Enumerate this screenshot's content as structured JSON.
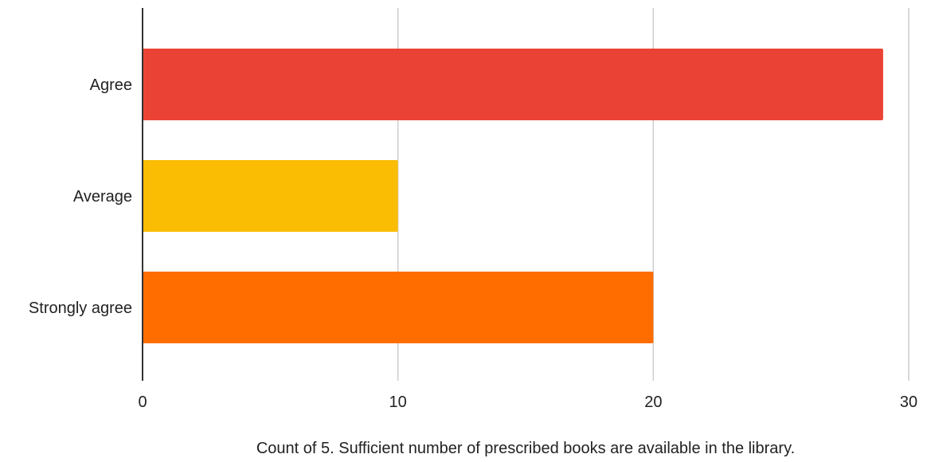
{
  "chart_data": {
    "type": "bar",
    "orientation": "horizontal",
    "title": "",
    "xlabel": "Count of 5. Sufficient number of prescribed books are available in the library.",
    "ylabel": "",
    "categories": [
      "Agree",
      "Average",
      "Strongly agree"
    ],
    "values": [
      29,
      10,
      20
    ],
    "bar_colors": [
      "#ea4335",
      "#fbbc04",
      "#ff6d01"
    ],
    "xlim": [
      0,
      30
    ],
    "x_ticks": [
      0,
      10,
      20,
      30
    ],
    "x_tick_labels": [
      "0",
      "10",
      "20",
      "30"
    ],
    "grid": true,
    "legend": "none"
  },
  "colors": {
    "gridline": "#cccccc",
    "axis": "#333333",
    "text": "#222222"
  }
}
